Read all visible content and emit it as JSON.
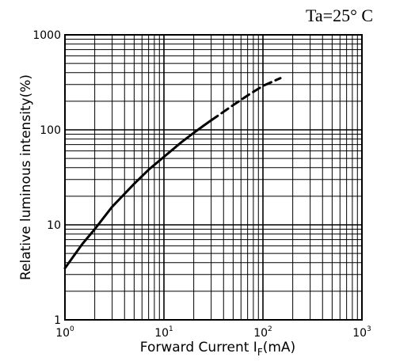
{
  "chart_data": {
    "type": "line",
    "title": "",
    "annotation": "Ta=25° C",
    "xlabel": "Forward Current I",
    "xlabel_subscript": "F",
    "xlabel_unit": "(mA)",
    "ylabel": "Relative luminous intensity(%)",
    "x_scale": "log",
    "y_scale": "log",
    "xlim": [
      1,
      1000
    ],
    "ylim": [
      1,
      1000
    ],
    "x_ticks": [
      {
        "base": "10",
        "exp": "0"
      },
      {
        "base": "10",
        "exp": "1"
      },
      {
        "base": "10",
        "exp": "2"
      },
      {
        "base": "10",
        "exp": "3"
      }
    ],
    "y_ticks": [
      "1",
      "10",
      "100",
      "1000"
    ],
    "grid": true,
    "line_color": "#000000",
    "series": [
      {
        "style": "solid",
        "x": [
          1,
          1.5,
          2,
          3,
          5,
          7,
          10,
          15,
          20,
          25,
          30
        ],
        "y": [
          3.5,
          6.3,
          9,
          15.5,
          27,
          38,
          52,
          74,
          93,
          110,
          126
        ]
      },
      {
        "style": "dashed",
        "x": [
          30,
          40,
          50,
          70,
          100,
          150
        ],
        "y": [
          126,
          155,
          182,
          230,
          290,
          350
        ]
      }
    ]
  }
}
